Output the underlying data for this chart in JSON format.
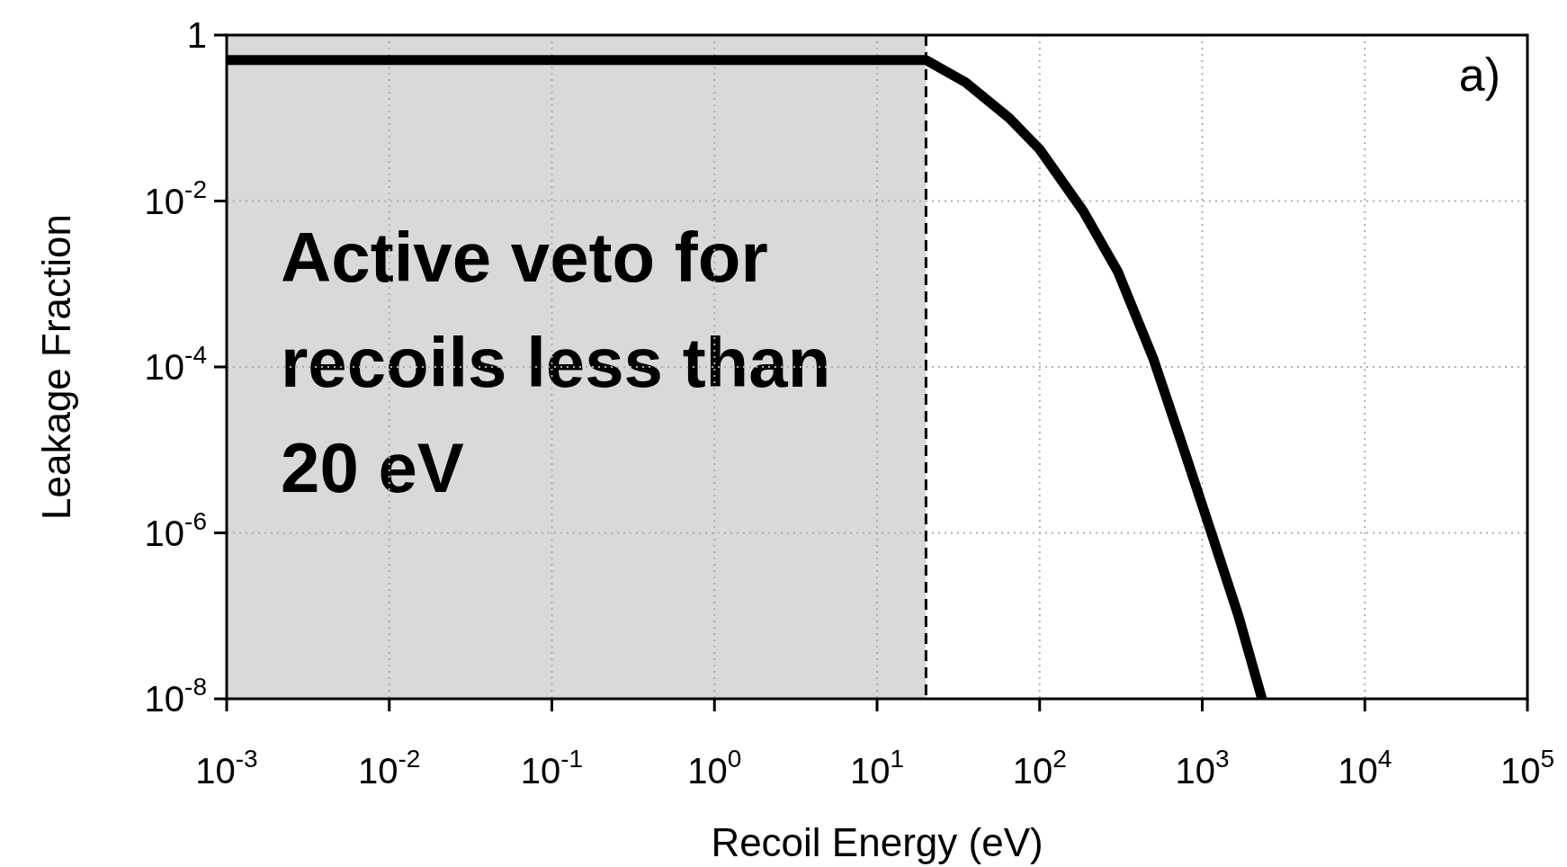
{
  "chart_data": {
    "type": "line",
    "xlabel": "Recoil Energy (eV)",
    "ylabel": "Leakage Fraction",
    "log": "xy",
    "grid": true,
    "legend": false,
    "marker": "none",
    "line_style": "solid",
    "xlim": [
      0.001,
      100000
    ],
    "ylim": [
      1e-08,
      1
    ],
    "xticks": [
      {
        "value": 0.001,
        "label": "10$^{-3}$"
      },
      {
        "value": 0.01,
        "label": "10$^{-2}$"
      },
      {
        "value": 0.1,
        "label": "10$^{-1}$"
      },
      {
        "value": 1,
        "label": "10$^{0}$"
      },
      {
        "value": 10,
        "label": "10$^{1}$"
      },
      {
        "value": 100,
        "label": "10$^{2}$"
      },
      {
        "value": 1000,
        "label": "10$^{3}$"
      },
      {
        "value": 10000,
        "label": "10$^{4}$"
      },
      {
        "value": 100000,
        "label": "10$^{5}$"
      }
    ],
    "yticks": [
      {
        "value": 1e-08,
        "label": "10$^{-8}$"
      },
      {
        "value": 1e-06,
        "label": "10$^{-6}$"
      },
      {
        "value": 0.0001,
        "label": "10$^{-4}$"
      },
      {
        "value": 0.01,
        "label": "10$^{-2}$"
      },
      1
    ],
    "series": [
      {
        "color": "#000000",
        "x": [
          0.001,
          20,
          35,
          65,
          100,
          185,
          303,
          500,
          760,
          1120,
          1670,
          2330
        ],
        "values": [
          0.5,
          0.5,
          0.27,
          0.1,
          0.042,
          0.0076,
          0.0014,
          0.000126,
          1.1e-05,
          1.1e-06,
          1e-07,
          1e-08
        ]
      }
    ],
    "bands": [
      {
        "axis": "x",
        "from": 0.001,
        "to": 20,
        "color": "#d9d9d9",
        "label": "Active veto for recoils less than 20 eV"
      }
    ],
    "ref_lines": [
      {
        "axis": "x",
        "value": 20,
        "color": "#000000",
        "line_style": "dashed"
      }
    ],
    "annotations": [
      "a)"
    ]
  }
}
